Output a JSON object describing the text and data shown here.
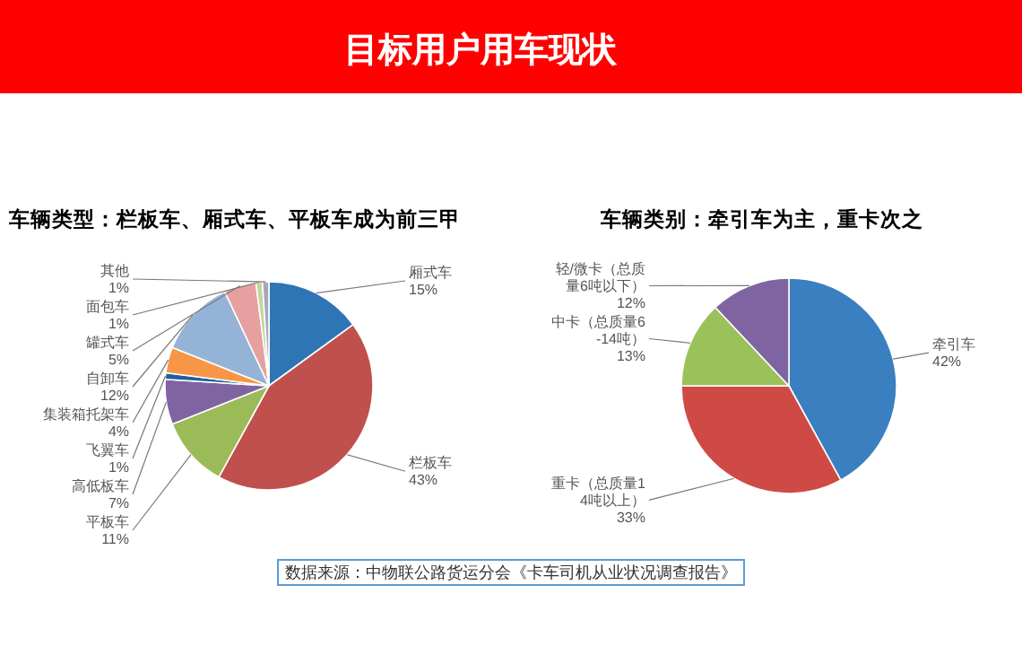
{
  "chart_data": [
    {
      "type": "pie",
      "title": "目标用户用车现状",
      "subtitle": "车辆类型：栏板车、厢式车、平板车成为前三甲",
      "categories": [
        "厢式车",
        "栏板车",
        "平板车",
        "高低板车",
        "飞翼车",
        "集装箱托架车",
        "自卸车",
        "罐式车",
        "面包车",
        "其他"
      ],
      "values": [
        15,
        43,
        11,
        7,
        1,
        4,
        12,
        5,
        1,
        1
      ],
      "value_labels": [
        "15%",
        "43%",
        "11%",
        "7%",
        "1%",
        "4%",
        "12%",
        "5%",
        "1%",
        "1%"
      ],
      "colors": [
        "#2e75b6",
        "#c0504d",
        "#9bbb59",
        "#8064a2",
        "#1f5f9f",
        "#f79646",
        "#95b3d7",
        "#e6a0a0",
        "#c3d69b",
        "#a6a6bd"
      ]
    },
    {
      "type": "pie",
      "title": "车辆类别：牵引车为主，重卡次之",
      "categories": [
        "牵引车",
        "重卡（总质量14吨以上）",
        "中卡（总质量6-14吨）",
        "轻/微卡（总质量6吨以下）"
      ],
      "values": [
        42,
        33,
        13,
        12
      ],
      "value_labels": [
        "42%",
        "33%",
        "13%",
        "12%"
      ],
      "colors": [
        "#3a7fc0",
        "#d04a45",
        "#9bc25a",
        "#8064a2"
      ],
      "annotations": [
        "数据来源：中物联公路货运分会《卡车司机从业状况调查报告》"
      ]
    }
  ]
}
